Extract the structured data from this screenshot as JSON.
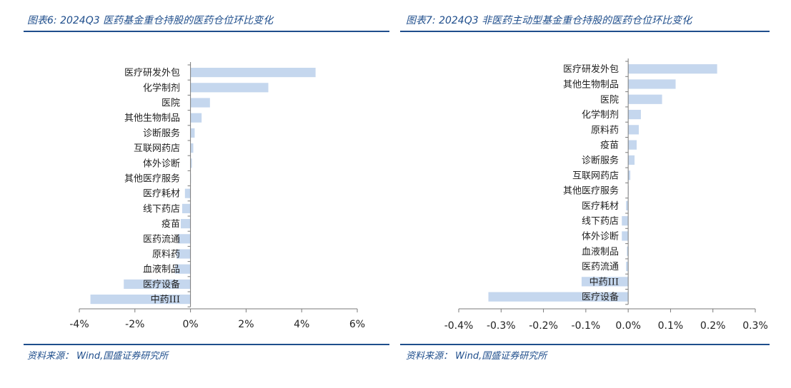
{
  "colors": {
    "accent": "#1f4e8c",
    "bar": "#c5d7ee",
    "axis": "#7a7a7a"
  },
  "charts": [
    {
      "title": "图表6:  2024Q3 医药基金重仓持股的医药仓位环比变化",
      "source": "资料来源：  Wind,国盛证券研究所",
      "chart_data": {
        "type": "bar",
        "orientation": "horizontal",
        "title": "图表6:  2024Q3 医药基金重仓持股的医药仓位环比变化",
        "categories": [
          "医疗研发外包",
          "化学制剂",
          "医院",
          "其他生物制品",
          "诊断服务",
          "互联网药店",
          "体外诊断",
          "其他医疗服务",
          "医疗耗材",
          "线下药店",
          "疫苗",
          "医药流通",
          "原料药",
          "血液制品",
          "医疗设备",
          "中药III"
        ],
        "values": [
          4.5,
          2.8,
          0.7,
          0.4,
          0.15,
          0.1,
          0.05,
          0.0,
          -0.2,
          -0.3,
          -0.35,
          -0.45,
          -0.5,
          -0.55,
          -2.4,
          -3.6
        ],
        "unit": "%",
        "xlim": [
          -4,
          6
        ],
        "xticks": [
          -4,
          -2,
          0,
          2,
          4,
          6
        ],
        "tick_labels": [
          "-4%",
          "-2%",
          "0%",
          "2%",
          "4%",
          "6%"
        ],
        "grid": false
      }
    },
    {
      "title": "图表7:  2024Q3 非医药主动型基金重仓持股的医药仓位环比变化",
      "source": "资料来源：  Wind,国盛证券研究所",
      "chart_data": {
        "type": "bar",
        "orientation": "horizontal",
        "title": "图表7:  2024Q3 非医药主动型基金重仓持股的医药仓位环比变化",
        "categories": [
          "医疗研发外包",
          "其他生物制品",
          "医院",
          "化学制剂",
          "原料药",
          "疫苗",
          "诊断服务",
          "互联网药店",
          "其他医疗服务",
          "医疗耗材",
          "线下药店",
          "体外诊断",
          "血液制品",
          "医药流通",
          "中药III",
          "医疗设备"
        ],
        "values": [
          0.21,
          0.112,
          0.08,
          0.03,
          0.025,
          0.02,
          0.015,
          0.005,
          0.0,
          -0.005,
          -0.015,
          -0.015,
          -0.003,
          -0.005,
          -0.11,
          -0.33
        ],
        "unit": "%",
        "xlim": [
          -0.4,
          0.3
        ],
        "xticks": [
          -0.4,
          -0.3,
          -0.2,
          -0.1,
          0.0,
          0.1,
          0.2,
          0.3
        ],
        "tick_labels": [
          "-0.4%",
          "-0.3%",
          "-0.2%",
          "-0.1%",
          "0.0%",
          "0.1%",
          "0.2%",
          "0.3%"
        ],
        "grid": false
      }
    }
  ]
}
